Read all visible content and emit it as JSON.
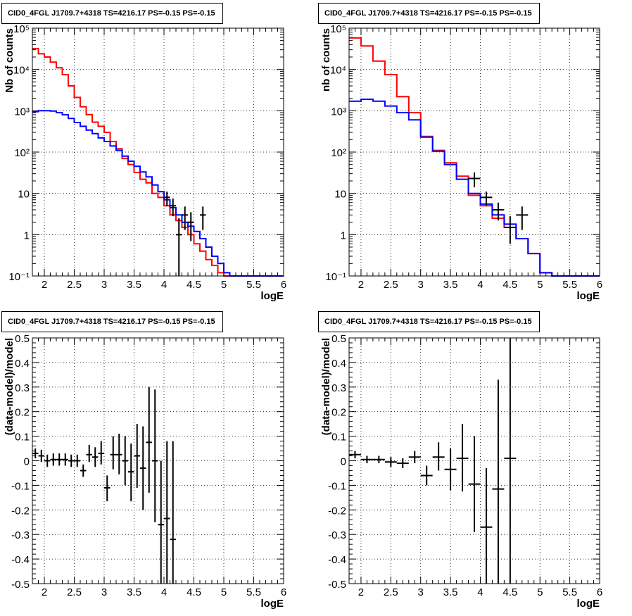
{
  "chart_data": [
    {
      "type": "histogram",
      "title": "CID0_4FGL J1709.7+4318 TS=4216.17 PS=-0.15 PS=-0.15",
      "xlabel": "logE",
      "ylabel": "Nb of counts",
      "xlim": [
        1.8,
        6.0
      ],
      "ylim": [
        0.1,
        100000
      ],
      "yscale": "log",
      "grid": true,
      "xticks": [
        "2",
        "2.5",
        "3",
        "3.5",
        "4",
        "4.5",
        "5",
        "5.5",
        "6"
      ],
      "yticks": [
        "10⁻¹",
        "1",
        "10",
        "10²",
        "10³",
        "10⁴",
        "10⁵"
      ],
      "bin_edges": [
        1.8,
        1.9,
        2.0,
        2.1,
        2.2,
        2.3,
        2.4,
        2.5,
        2.6,
        2.7,
        2.8,
        2.9,
        3.0,
        3.1,
        3.2,
        3.3,
        3.4,
        3.5,
        3.6,
        3.7,
        3.8,
        3.9,
        4.0,
        4.1,
        4.2,
        4.3,
        4.4,
        4.5,
        4.6,
        4.7,
        4.8,
        4.9,
        5.0,
        5.1,
        5.2,
        5.3,
        5.4,
        5.5,
        5.6,
        5.7,
        5.8,
        5.9,
        6.0
      ],
      "series": [
        {
          "color": "#ff0000",
          "values": [
            32000,
            24000,
            20000,
            15000,
            11000,
            7500,
            4000,
            2100,
            1250,
            810,
            530,
            420,
            300,
            180,
            120,
            70,
            50,
            32,
            22,
            18,
            10,
            8,
            5,
            3,
            2.2,
            1.5,
            1,
            0.6,
            0.4,
            0.25,
            0.18,
            0.12,
            0.1,
            0.1,
            0.1,
            0.1,
            0.1,
            0.1,
            0.1,
            0.1,
            0.1,
            0.1
          ]
        },
        {
          "color": "#0000ff",
          "values": [
            950,
            1000,
            1000,
            980,
            900,
            800,
            650,
            520,
            420,
            340,
            280,
            220,
            180,
            140,
            110,
            80,
            60,
            45,
            33,
            25,
            16,
            11,
            7,
            4.5,
            3,
            2,
            1.6,
            1.2,
            0.8,
            0.5,
            0.3,
            0.2,
            0.12,
            0.1,
            0.1,
            0.1,
            0.1,
            0.1,
            0.1,
            0.1,
            0.1,
            0.1
          ]
        }
      ],
      "data_points": [
        {
          "x": 4.05,
          "y": 8,
          "xerr": 0.05,
          "ylo": 5,
          "yhi": 11
        },
        {
          "x": 4.15,
          "y": 5,
          "xerr": 0.05,
          "ylo": 2.8,
          "yhi": 7.5
        },
        {
          "x": 4.25,
          "y": 1,
          "xerr": 0.05,
          "ylo": 0.1,
          "yhi": 2.5
        },
        {
          "x": 4.35,
          "y": 3,
          "xerr": 0.05,
          "ylo": 1.3,
          "yhi": 4.8
        },
        {
          "x": 4.45,
          "y": 2,
          "xerr": 0.05,
          "ylo": 0.7,
          "yhi": 3.5
        },
        {
          "x": 4.65,
          "y": 3,
          "xerr": 0.05,
          "ylo": 1.3,
          "yhi": 4.8
        }
      ]
    },
    {
      "type": "histogram",
      "title": "CID0_4FGL J1709.7+4318 TS=4216.17 PS=-0.15 PS=-0.15",
      "xlabel": "logE",
      "ylabel": "nb of counts",
      "xlim": [
        1.8,
        6.0
      ],
      "ylim": [
        0.1,
        100000
      ],
      "yscale": "log",
      "grid": true,
      "xticks": [
        "2",
        "2.5",
        "3",
        "3.5",
        "4",
        "4.5",
        "5",
        "5.5",
        "6"
      ],
      "yticks": [
        "10⁻¹",
        "1",
        "10",
        "10²",
        "10³",
        "10⁴",
        "10⁵"
      ],
      "bin_edges": [
        1.8,
        2.0,
        2.2,
        2.4,
        2.6,
        2.8,
        3.0,
        3.2,
        3.4,
        3.6,
        3.8,
        4.0,
        4.2,
        4.4,
        4.6,
        4.8,
        5.0,
        5.2,
        5.4,
        5.6,
        5.8,
        6.0
      ],
      "series": [
        {
          "color": "#ff0000",
          "values": [
            58000,
            37000,
            16000,
            7500,
            2200,
            900,
            240,
            110,
            55,
            26,
            9,
            5,
            2.5,
            1.5,
            0.8,
            0.35,
            0.12,
            0.1,
            0.1,
            0.1,
            0.1
          ]
        },
        {
          "color": "#0000ff",
          "values": [
            1700,
            1900,
            1700,
            1300,
            900,
            600,
            230,
            105,
            50,
            22,
            10,
            5.5,
            3,
            1.8,
            0.8,
            0.35,
            0.12,
            0.1,
            0.1,
            0.1,
            0.1
          ]
        }
      ],
      "data_points": [
        {
          "x": 3.9,
          "y": 23,
          "xerr": 0.1,
          "ylo": 14,
          "yhi": 32
        },
        {
          "x": 4.1,
          "y": 8,
          "xerr": 0.1,
          "ylo": 5,
          "yhi": 11
        },
        {
          "x": 4.3,
          "y": 4,
          "xerr": 0.1,
          "ylo": 2.2,
          "yhi": 6
        },
        {
          "x": 4.5,
          "y": 1.5,
          "xerr": 0.1,
          "ylo": 0.6,
          "yhi": 2.8
        },
        {
          "x": 4.7,
          "y": 3,
          "xerr": 0.1,
          "ylo": 1.3,
          "yhi": 4.8
        }
      ]
    },
    {
      "type": "scatter",
      "title": "CID0_4FGL J1709.7+4318 TS=4216.17 PS=-0.15 PS=-0.15",
      "xlabel": "logE",
      "ylabel": "(data-model)/model",
      "xlim": [
        1.8,
        6.0
      ],
      "ylim": [
        -0.5,
        0.5
      ],
      "grid": true,
      "xticks": [
        "2",
        "2.5",
        "3",
        "3.5",
        "4",
        "4.5",
        "5",
        "5.5",
        "6"
      ],
      "yticks": [
        "-0.5",
        "-0.4",
        "-0.3",
        "-0.2",
        "-0.1",
        "0",
        "0.1",
        "0.2",
        "0.3",
        "0.4",
        "0.5"
      ],
      "data_points": [
        {
          "x": 1.85,
          "y": 0.03,
          "xerr": 0.05,
          "ylo": 0.01,
          "yhi": 0.05
        },
        {
          "x": 1.95,
          "y": 0.02,
          "xerr": 0.05,
          "ylo": -0.005,
          "yhi": 0.045
        },
        {
          "x": 2.05,
          "y": 0.0,
          "xerr": 0.05,
          "ylo": -0.025,
          "yhi": 0.025
        },
        {
          "x": 2.15,
          "y": 0.005,
          "xerr": 0.05,
          "ylo": -0.02,
          "yhi": 0.03
        },
        {
          "x": 2.25,
          "y": 0.005,
          "xerr": 0.05,
          "ylo": -0.02,
          "yhi": 0.03
        },
        {
          "x": 2.35,
          "y": 0.005,
          "xerr": 0.05,
          "ylo": -0.02,
          "yhi": 0.03
        },
        {
          "x": 2.45,
          "y": 0.0,
          "xerr": 0.05,
          "ylo": -0.025,
          "yhi": 0.025
        },
        {
          "x": 2.55,
          "y": 0.0,
          "xerr": 0.05,
          "ylo": -0.025,
          "yhi": 0.025
        },
        {
          "x": 2.65,
          "y": -0.04,
          "xerr": 0.05,
          "ylo": -0.065,
          "yhi": -0.015
        },
        {
          "x": 2.75,
          "y": 0.025,
          "xerr": 0.05,
          "ylo": -0.005,
          "yhi": 0.065
        },
        {
          "x": 2.85,
          "y": 0.015,
          "xerr": 0.05,
          "ylo": -0.025,
          "yhi": 0.055
        },
        {
          "x": 2.95,
          "y": 0.03,
          "xerr": 0.05,
          "ylo": -0.015,
          "yhi": 0.08
        },
        {
          "x": 3.05,
          "y": -0.11,
          "xerr": 0.05,
          "ylo": -0.165,
          "yhi": -0.06
        },
        {
          "x": 3.15,
          "y": 0.025,
          "xerr": 0.05,
          "ylo": -0.035,
          "yhi": 0.1
        },
        {
          "x": 3.25,
          "y": 0.025,
          "xerr": 0.05,
          "ylo": -0.055,
          "yhi": 0.11
        },
        {
          "x": 3.35,
          "y": 0.0,
          "xerr": 0.05,
          "ylo": -0.1,
          "yhi": 0.1
        },
        {
          "x": 3.45,
          "y": -0.045,
          "xerr": 0.05,
          "ylo": -0.165,
          "yhi": 0.07
        },
        {
          "x": 3.55,
          "y": 0.02,
          "xerr": 0.05,
          "ylo": -0.11,
          "yhi": 0.15
        },
        {
          "x": 3.65,
          "y": -0.03,
          "xerr": 0.05,
          "ylo": -0.2,
          "yhi": 0.14
        },
        {
          "x": 3.75,
          "y": 0.075,
          "xerr": 0.05,
          "ylo": -0.13,
          "yhi": 0.3
        },
        {
          "x": 3.85,
          "y": 0.0,
          "xerr": 0.05,
          "ylo": -0.25,
          "yhi": 0.29
        },
        {
          "x": 3.95,
          "y": -0.26,
          "xerr": 0.05,
          "ylo": -0.5,
          "yhi": 0.0
        },
        {
          "x": 4.05,
          "y": -0.235,
          "xerr": 0.05,
          "ylo": -0.5,
          "yhi": 0.08
        },
        {
          "x": 4.15,
          "y": -0.32,
          "xerr": 0.05,
          "ylo": -0.5,
          "yhi": 0.08
        }
      ]
    },
    {
      "type": "scatter",
      "title": "CID0_4FGL J1709.7+4318 TS=4216.17 PS=-0.15 PS=-0.15",
      "xlabel": "logE",
      "ylabel": "(data-model)/model",
      "xlim": [
        1.8,
        6.0
      ],
      "ylim": [
        -0.5,
        0.5
      ],
      "grid": true,
      "xticks": [
        "2",
        "2.5",
        "3",
        "3.5",
        "4",
        "4.5",
        "5",
        "5.5",
        "6"
      ],
      "yticks": [
        "-0.5",
        "-0.4",
        "-0.3",
        "-0.2",
        "-0.1",
        "0",
        "0.1",
        "0.2",
        "0.3",
        "0.4",
        "0.5"
      ],
      "data_points": [
        {
          "x": 1.9,
          "y": 0.025,
          "xerr": 0.1,
          "ylo": 0.01,
          "yhi": 0.04
        },
        {
          "x": 2.1,
          "y": 0.005,
          "xerr": 0.1,
          "ylo": -0.01,
          "yhi": 0.02
        },
        {
          "x": 2.3,
          "y": 0.005,
          "xerr": 0.1,
          "ylo": -0.01,
          "yhi": 0.02
        },
        {
          "x": 2.5,
          "y": -0.005,
          "xerr": 0.1,
          "ylo": -0.025,
          "yhi": 0.015
        },
        {
          "x": 2.7,
          "y": -0.01,
          "xerr": 0.1,
          "ylo": -0.03,
          "yhi": 0.01
        },
        {
          "x": 2.9,
          "y": 0.015,
          "xerr": 0.1,
          "ylo": -0.01,
          "yhi": 0.04
        },
        {
          "x": 3.1,
          "y": -0.06,
          "xerr": 0.1,
          "ylo": -0.1,
          "yhi": -0.02
        },
        {
          "x": 3.3,
          "y": 0.015,
          "xerr": 0.1,
          "ylo": -0.04,
          "yhi": 0.075
        },
        {
          "x": 3.5,
          "y": -0.035,
          "xerr": 0.1,
          "ylo": -0.12,
          "yhi": 0.05
        },
        {
          "x": 3.7,
          "y": 0.01,
          "xerr": 0.1,
          "ylo": -0.125,
          "yhi": 0.15
        },
        {
          "x": 3.9,
          "y": -0.095,
          "xerr": 0.1,
          "ylo": -0.29,
          "yhi": 0.1
        },
        {
          "x": 4.1,
          "y": -0.27,
          "xerr": 0.1,
          "ylo": -0.5,
          "yhi": -0.03
        },
        {
          "x": 4.3,
          "y": -0.115,
          "xerr": 0.1,
          "ylo": -0.5,
          "yhi": 0.33
        },
        {
          "x": 4.5,
          "y": 0.01,
          "xerr": 0.1,
          "ylo": -0.5,
          "yhi": 0.5
        }
      ]
    }
  ]
}
